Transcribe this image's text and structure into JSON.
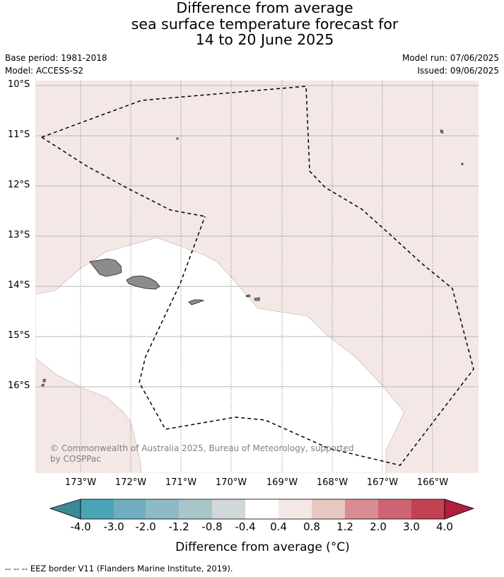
{
  "title": {
    "line1": "Difference from average",
    "line2": "sea surface temperature forecast for",
    "line3": "14 to 20 June 2025"
  },
  "meta": {
    "base_period": "Base period: 1981-2018",
    "model": "Model: ACCESS-S2",
    "model_run": "Model run: 07/06/2025",
    "issued": "Issued: 09/06/2025"
  },
  "map": {
    "lat_labels": [
      "10°S",
      "11°S",
      "12°S",
      "13°S",
      "14°S",
      "15°S",
      "16°S"
    ],
    "lon_labels": [
      "173°W",
      "172°W",
      "171°W",
      "170°W",
      "169°W",
      "168°W",
      "167°W",
      "166°W"
    ],
    "copyright_line1": "© Commonwealth of Australia 2025, Bureau of Meteorology, supported",
    "copyright_line2": "by COSPPac",
    "colors": {
      "ocean_anomaly_0_4_0_8": "#f4e8e6",
      "ocean_neutral": "#ffffff",
      "land": "#8c8c8c",
      "eez": "#000000"
    }
  },
  "colorbar": {
    "labels": [
      "-4.0",
      "-3.0",
      "-2.0",
      "-1.2",
      "-0.8",
      "-0.4",
      "0.4",
      "0.8",
      "1.2",
      "2.0",
      "3.0",
      "4.0"
    ],
    "title": "Difference from average (°C)",
    "colors": [
      "#3d8a96",
      "#4aa4b6",
      "#6eaec0",
      "#8dbac4",
      "#a8c6ca",
      "#d0d8d9",
      "#ffffff",
      "#f4e8e6",
      "#e8c6c2",
      "#d98c94",
      "#cd6472",
      "#c24254",
      "#b21e3e"
    ]
  },
  "footnote": "--  --  -- EEZ border V11 (Flanders Marine Institute, 2019)."
}
